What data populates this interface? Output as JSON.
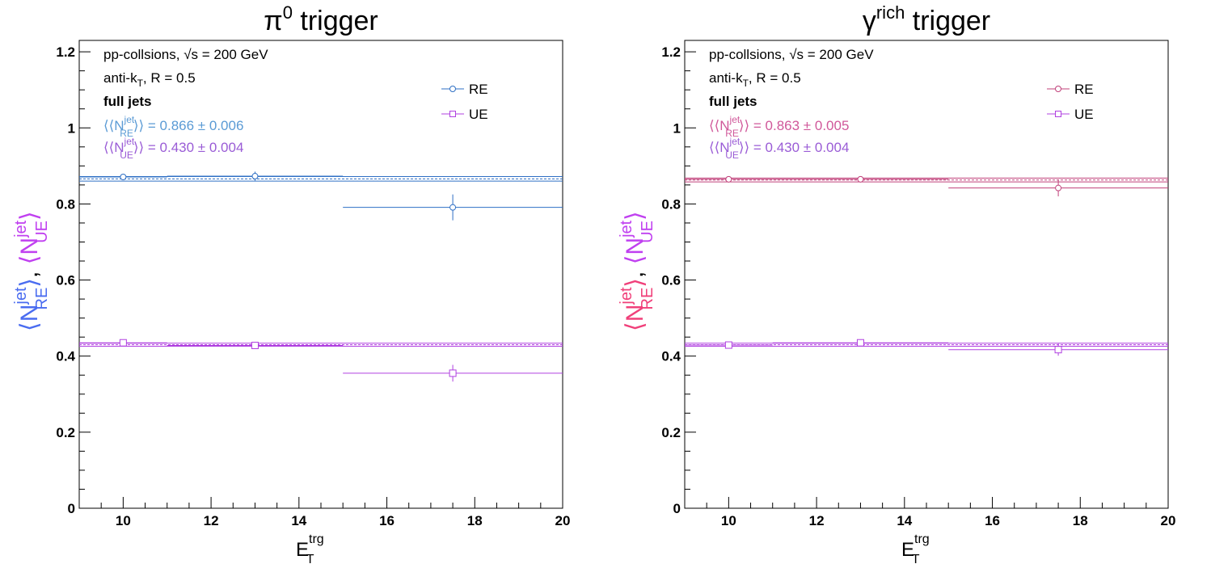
{
  "chart_data": [
    {
      "type": "scatter",
      "title_main": "π",
      "title_sup": "0",
      "title_rest": " trigger",
      "xlabel_main": "E",
      "xlabel_sub": "T",
      "xlabel_sup": "trg",
      "ylabel": {
        "open": "⟨",
        "N": "N",
        "sup": "jet",
        "sub_re": "RE",
        "close": "⟩",
        "comma": ", ",
        "sub_ue": "UE",
        "re_color": "#4a6cf0",
        "ue_color": "#c040f0"
      },
      "xlim": [
        9,
        20
      ],
      "ylim": [
        0,
        1.23
      ],
      "xticks": [
        10,
        12,
        14,
        16,
        18,
        20
      ],
      "xtick_labels": [
        "10",
        "12",
        "14",
        "16",
        "18",
        "20"
      ],
      "yticks": [
        0,
        0.2,
        0.4,
        0.6,
        0.8,
        1,
        1.2
      ],
      "ytick_labels": [
        "0",
        "0.2",
        "0.4",
        "0.6",
        "0.8",
        "1",
        "1.2"
      ],
      "annotations": {
        "system_a": "pp-collsions, ",
        "system_sqrt": "√s",
        "system_b": " = 200 GeV",
        "algo_a": "anti-k",
        "algo_sub": "T",
        "algo_b": ", R = 0.5",
        "jets": "full jets",
        "re_mean_pre": "⟨⟨N",
        "re_mean_sup": "jet",
        "re_mean_sub": "RE",
        "re_mean_post": "⟩⟩ = 0.866 ± 0.006",
        "ue_mean_pre": "⟨⟨N",
        "ue_mean_sup": "jet",
        "ue_mean_sub": "UE",
        "ue_mean_post": "⟩⟩ = 0.430 ± 0.004"
      },
      "legend_position": "top-right",
      "series": [
        {
          "name": "RE",
          "marker": "circle",
          "color": "#2e6fc4",
          "text_color": "#5b9bd5",
          "fit": {
            "value": 0.866,
            "error": 0.006
          },
          "points": [
            {
              "x": 10,
              "xerr": 1,
              "y": 0.871,
              "yerr": 0.004
            },
            {
              "x": 13,
              "xerr": 2,
              "y": 0.873,
              "yerr": 0.012
            },
            {
              "x": 17.5,
              "xerr": 2.5,
              "y": 0.791,
              "yerr": 0.034
            }
          ]
        },
        {
          "name": "UE",
          "marker": "square",
          "color": "#b040e0",
          "text_color": "#9a5cd6",
          "fit": {
            "value": 0.43,
            "error": 0.004
          },
          "points": [
            {
              "x": 10,
              "xerr": 1,
              "y": 0.435,
              "yerr": 0.004
            },
            {
              "x": 13,
              "xerr": 2,
              "y": 0.428,
              "yerr": 0.006
            },
            {
              "x": 17.5,
              "xerr": 2.5,
              "y": 0.355,
              "yerr": 0.022
            }
          ]
        }
      ]
    },
    {
      "type": "scatter",
      "title_main": "γ",
      "title_sup": "rich",
      "title_rest": " trigger",
      "xlabel_main": "E",
      "xlabel_sub": "T",
      "xlabel_sup": "trg",
      "ylabel": {
        "open": "⟨",
        "N": "N",
        "sup": "jet",
        "sub_re": "RE",
        "close": "⟩",
        "comma": ", ",
        "sub_ue": "UE",
        "re_color": "#f0407a",
        "ue_color": "#c040f0"
      },
      "xlim": [
        9,
        20
      ],
      "ylim": [
        0,
        1.23
      ],
      "xticks": [
        10,
        12,
        14,
        16,
        18,
        20
      ],
      "xtick_labels": [
        "10",
        "12",
        "14",
        "16",
        "18",
        "20"
      ],
      "yticks": [
        0,
        0.2,
        0.4,
        0.6,
        0.8,
        1,
        1.2
      ],
      "ytick_labels": [
        "0",
        "0.2",
        "0.4",
        "0.6",
        "0.8",
        "1",
        "1.2"
      ],
      "annotations": {
        "system_a": "pp-collsions, ",
        "system_sqrt": "√s",
        "system_b": " = 200 GeV",
        "algo_a": "anti-k",
        "algo_sub": "T",
        "algo_b": ", R = 0.5",
        "jets": "full jets",
        "re_mean_pre": "⟨⟨N",
        "re_mean_sup": "jet",
        "re_mean_sub": "RE",
        "re_mean_post": "⟩⟩ = 0.863 ± 0.005",
        "ue_mean_pre": "⟨⟨N",
        "ue_mean_sup": "jet",
        "ue_mean_sub": "UE",
        "ue_mean_post": "⟩⟩ = 0.430 ± 0.004"
      },
      "legend_position": "top-right",
      "series": [
        {
          "name": "RE",
          "marker": "circle",
          "color": "#c0407a",
          "text_color": "#d0589a",
          "fit": {
            "value": 0.863,
            "error": 0.005
          },
          "points": [
            {
              "x": 10,
              "xerr": 1,
              "y": 0.865,
              "yerr": 0.004
            },
            {
              "x": 13,
              "xerr": 2,
              "y": 0.865,
              "yerr": 0.008
            },
            {
              "x": 17.5,
              "xerr": 2.5,
              "y": 0.842,
              "yerr": 0.022
            }
          ]
        },
        {
          "name": "UE",
          "marker": "square",
          "color": "#b040e0",
          "text_color": "#9a5cd6",
          "fit": {
            "value": 0.43,
            "error": 0.004
          },
          "points": [
            {
              "x": 10,
              "xerr": 1,
              "y": 0.429,
              "yerr": 0.004
            },
            {
              "x": 13,
              "xerr": 2,
              "y": 0.435,
              "yerr": 0.005
            },
            {
              "x": 17.5,
              "xerr": 2.5,
              "y": 0.417,
              "yerr": 0.016
            }
          ]
        }
      ]
    }
  ]
}
